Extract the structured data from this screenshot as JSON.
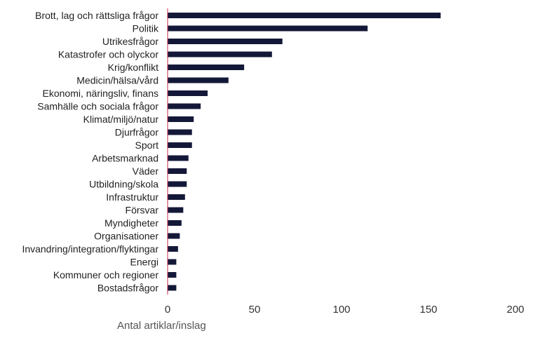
{
  "chart_data": {
    "type": "bar",
    "orientation": "horizontal",
    "categories": [
      "Brott, lag och rättsliga frågor",
      "Politik",
      "Utrikesfrågor",
      "Katastrofer och olyckor",
      "Krig/konflikt",
      "Medicin/hälsa/vård",
      "Ekonomi, näringsliv, finans",
      "Samhälle och sociala frågor",
      "Klimat/miljö/natur",
      "Djurfrågor",
      "Sport",
      "Arbetsmarknad",
      "Väder",
      "Utbildning/skola",
      "Infrastruktur",
      "Försvar",
      "Myndigheter",
      "Organisationer",
      "Invandring/integration/flyktingar",
      "Energi",
      "Kommuner och regioner",
      "Bostadsfrågor"
    ],
    "values": [
      157,
      115,
      66,
      60,
      44,
      35,
      23,
      19,
      15,
      14,
      14,
      12,
      11,
      11,
      10,
      9,
      8,
      7,
      6,
      5,
      5,
      5
    ],
    "xlim": [
      0,
      200
    ],
    "xticks": [
      "0",
      "50",
      "100",
      "150",
      "200"
    ],
    "xlabel": "Antal artiklar/inslag",
    "ylabel": "",
    "title": "",
    "grid": false,
    "legend": "none",
    "colors": {
      "bar": "#141838",
      "axis": "#c0294a"
    }
  }
}
